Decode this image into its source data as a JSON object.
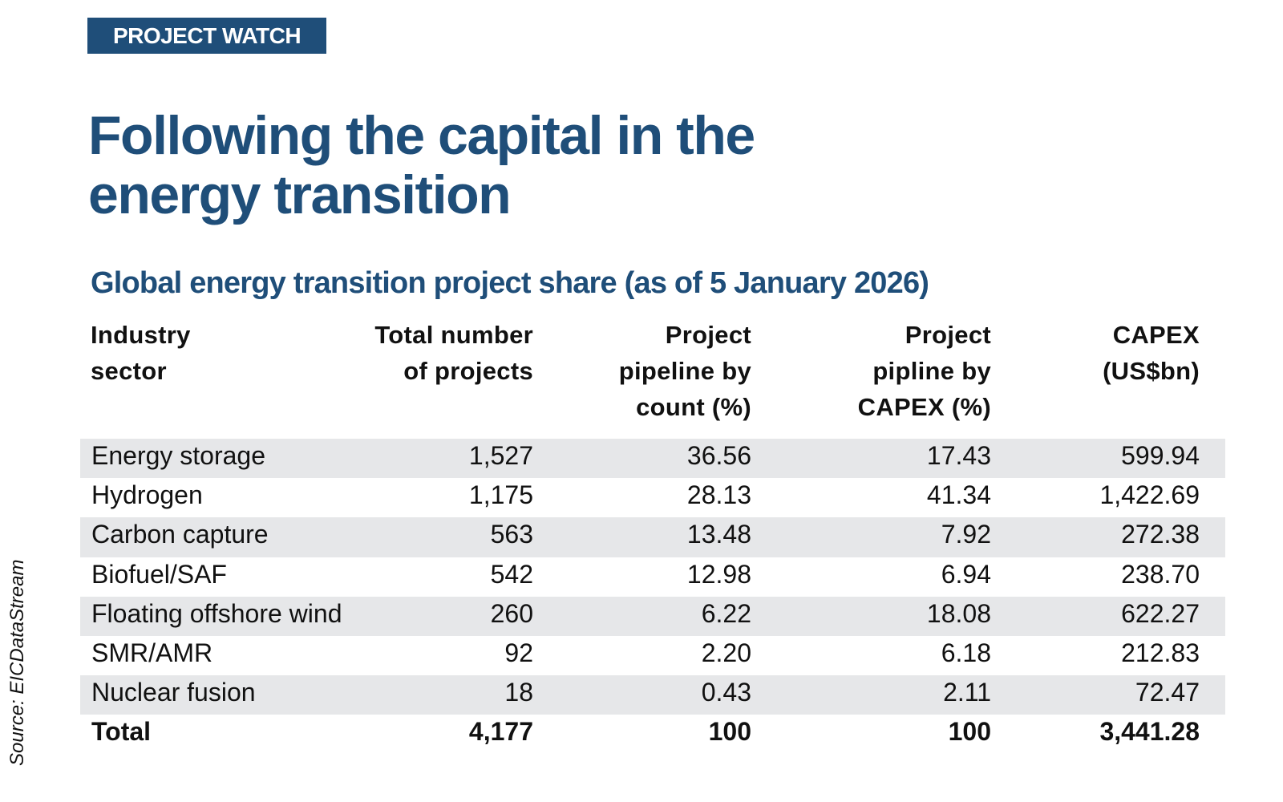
{
  "badge": "PROJECT WATCH",
  "title": {
    "line1": "Following the capital in the",
    "line2": "energy transition"
  },
  "subtitle": "Global energy transition project share (as of 5 January 2026)",
  "source": "Source: EICDataStream",
  "colors": {
    "brand": "#1f4e79",
    "row_shade": "#e6e7e9"
  },
  "table": {
    "headers": [
      [
        "Industry",
        "sector"
      ],
      [
        "Total number",
        "of projects"
      ],
      [
        "Project",
        "pipeline by",
        "count (%)"
      ],
      [
        "Project",
        "pipline by",
        "CAPEX (%)"
      ],
      [
        "CAPEX",
        "(US$bn)"
      ]
    ],
    "rows": [
      [
        "Energy storage",
        "1,527",
        "36.56",
        "17.43",
        "599.94"
      ],
      [
        "Hydrogen",
        "1,175",
        "28.13",
        "41.34",
        "1,422.69"
      ],
      [
        "Carbon capture",
        "563",
        "13.48",
        "7.92",
        "272.38"
      ],
      [
        "Biofuel/SAF",
        "542",
        "12.98",
        "6.94",
        "238.70"
      ],
      [
        "Floating offshore wind",
        "260",
        "6.22",
        "18.08",
        "622.27"
      ],
      [
        "SMR/AMR",
        "92",
        "2.20",
        "6.18",
        "212.83"
      ],
      [
        "Nuclear fusion",
        "18",
        "0.43",
        "2.11",
        "72.47"
      ]
    ],
    "total": [
      "Total",
      "4,177",
      "100",
      "100",
      "3,441.28"
    ]
  }
}
